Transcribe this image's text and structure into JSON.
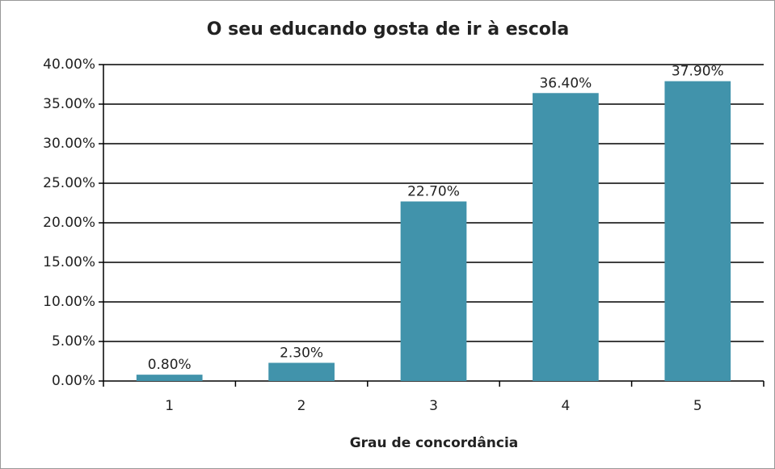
{
  "chart_data": {
    "type": "bar",
    "title": "O seu educando gosta de ir à escola",
    "xlabel": "Grau de concordância",
    "categories": [
      "1",
      "2",
      "3",
      "4",
      "5"
    ],
    "values": [
      0.8,
      2.3,
      22.7,
      36.4,
      37.9
    ],
    "value_labels": [
      "0.80%",
      "2.30%",
      "22.70%",
      "36.40%",
      "37.90%"
    ],
    "color": "#4193ab",
    "ylim": [
      0,
      40
    ],
    "yticks": [
      {
        "value": 0,
        "label": "0.00%"
      },
      {
        "value": 5,
        "label": "5.00%"
      },
      {
        "value": 10,
        "label": "10.00%"
      },
      {
        "value": 15,
        "label": "15.00%"
      },
      {
        "value": 20,
        "label": "20.00%"
      },
      {
        "value": 25,
        "label": "25.00%"
      },
      {
        "value": 30,
        "label": "30.00%"
      },
      {
        "value": 35,
        "label": "35.00%"
      },
      {
        "value": 40,
        "label": "40.00%"
      }
    ],
    "grid": true
  }
}
